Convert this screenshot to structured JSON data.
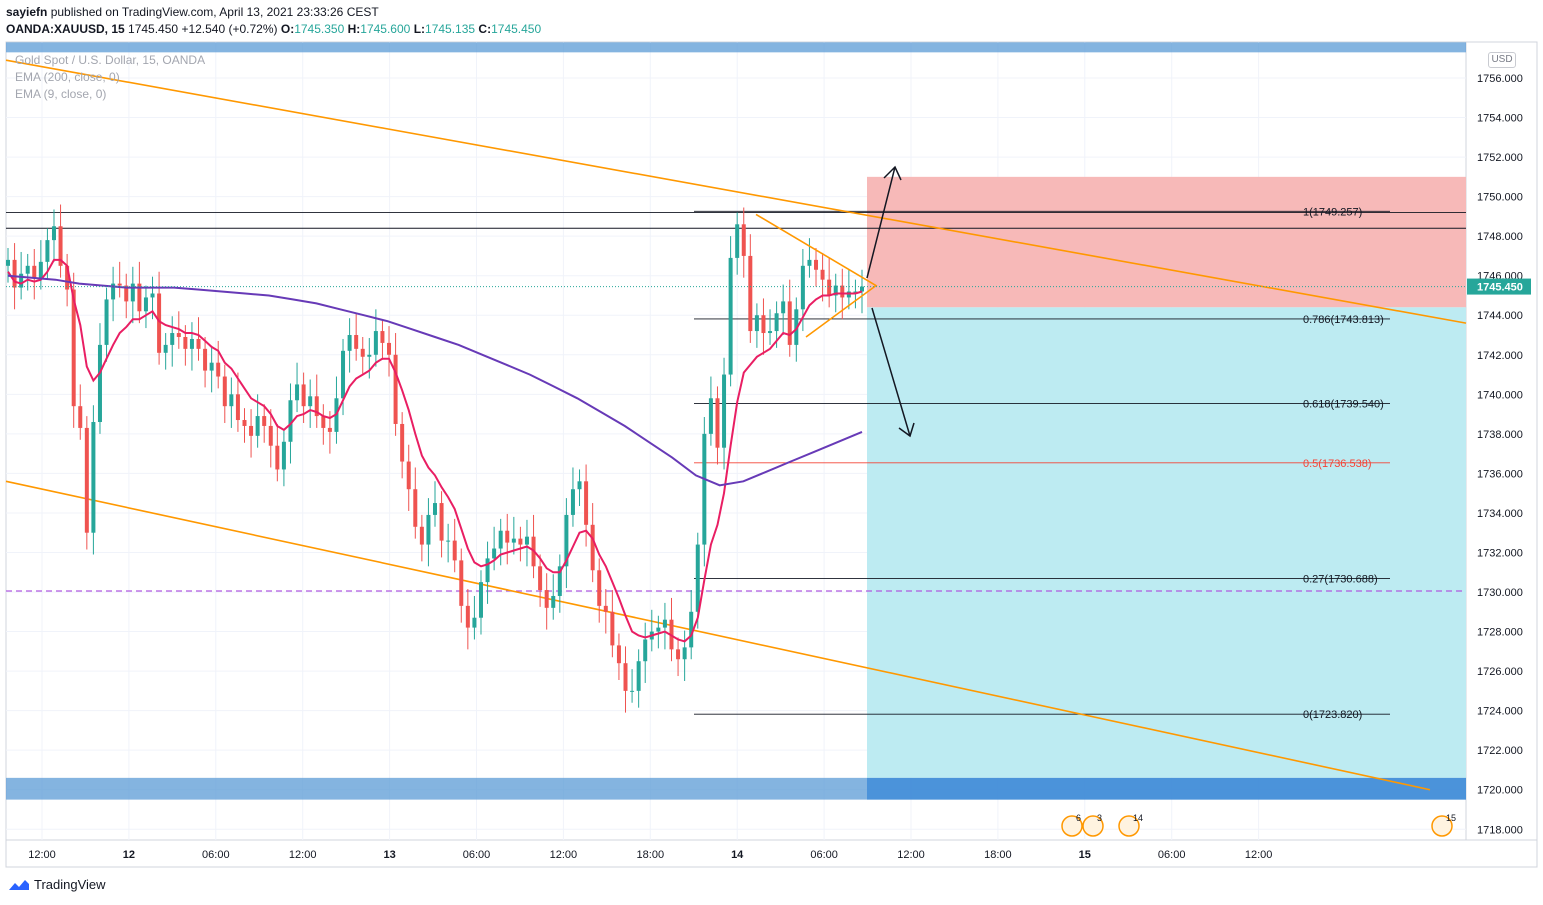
{
  "header": {
    "author": "sayiefn",
    "published_text": "published on TradingView.com, April 13, 2021 23:33:26 CEST",
    "symbol": "OANDA:XAUUSD, 15",
    "last": "1745.450",
    "change": "+12.540 (+0.72%)",
    "open_label": "O:",
    "open": "1745.350",
    "high_label": "H:",
    "high": "1745.600",
    "low_label": "L:",
    "low": "1745.135",
    "close_label": "C:",
    "close": "1745.450"
  },
  "legend": {
    "title": "Gold Spot / U.S. Dollar, 15, OANDA",
    "ema200": "EMA (200, close, 0)",
    "ema9": "EMA (9, close, 0)"
  },
  "currency_label": "USD",
  "footer": {
    "brand": "TradingView"
  },
  "colors": {
    "up": "#26a69a",
    "down": "#ef5350",
    "ema200": "#673ab7",
    "ema9": "#e91e63",
    "trendline": "#ff9800",
    "stop_zone": "#f7b9b8",
    "target_zone": "#bdebf2",
    "band": "#5b9bd5",
    "fib_mid": "#f44336"
  },
  "chart_data": {
    "type": "candlestick",
    "symbol": "XAUUSD",
    "interval": "15",
    "ylim": [
      1717,
      1758
    ],
    "y_ticks": [
      "1756.000",
      "1754.000",
      "1752.000",
      "1750.000",
      "1748.000",
      "1746.000",
      "1744.000",
      "1742.000",
      "1740.000",
      "1738.000",
      "1736.000",
      "1734.000",
      "1732.000",
      "1730.000",
      "1728.000",
      "1726.000",
      "1724.000",
      "1722.000",
      "1720.000",
      "1718.000"
    ],
    "x_ticks": [
      "12:00",
      "12",
      "06:00",
      "12:00",
      "13",
      "06:00",
      "12:00",
      "18:00",
      "14",
      "06:00",
      "12:00",
      "18:00",
      "15",
      "06:00",
      "12:00"
    ],
    "last_price": "1745.450",
    "close": [
      1746.8,
      1745.4,
      1746.1,
      1746.5,
      1745.9,
      1746.7,
      1747.8,
      1748.5,
      1746.5,
      1745.3,
      1739.4,
      1738.3,
      1733.0,
      1738.6,
      1742.5,
      1744.8,
      1745.6,
      1745.5,
      1744.7,
      1745.6,
      1744.2,
      1744.9,
      1745.1,
      1742.1,
      1742.5,
      1743.1,
      1742.9,
      1742.3,
      1742.8,
      1742.3,
      1741.2,
      1741.6,
      1740.9,
      1739.4,
      1740.0,
      1738.7,
      1738.4,
      1737.9,
      1738.9,
      1738.4,
      1737.4,
      1736.2,
      1737.6,
      1739.7,
      1740.5,
      1739.4,
      1739.9,
      1738.9,
      1738.3,
      1738.1,
      1739.8,
      1742.2,
      1743.0,
      1742.3,
      1741.9,
      1742.0,
      1743.2,
      1742.6,
      1742.0,
      1738.5,
      1736.6,
      1735.2,
      1733.3,
      1732.4,
      1733.9,
      1734.5,
      1732.6,
      1732.6,
      1731.6,
      1729.3,
      1728.2,
      1728.7,
      1730.5,
      1731.7,
      1732.2,
      1733.1,
      1732.5,
      1732.7,
      1732.4,
      1732.8,
      1731.3,
      1730.1,
      1729.2,
      1729.8,
      1731.3,
      1733.9,
      1735.2,
      1735.6,
      1733.4,
      1731.1,
      1729.3,
      1729.0,
      1727.3,
      1726.4,
      1725.0,
      1725.0,
      1726.5,
      1727.6,
      1728.0,
      1728.2,
      1728.6,
      1727.1,
      1726.6,
      1727.2,
      1729.0,
      1732.4,
      1738.0,
      1739.8,
      1737.3,
      1741.0,
      1746.9,
      1748.6,
      1747.0,
      1743.2,
      1744.0,
      1743.1,
      1743.2,
      1744.1,
      1744.7,
      1742.5,
      1744.3,
      1746.5,
      1746.8,
      1746.3,
      1745.8,
      1745.0,
      1745.5,
      1744.9,
      1745.2,
      1745.2,
      1745.45
    ],
    "ema200": [
      1746.0,
      1745.9,
      1745.8,
      1745.6,
      1745.5,
      1745.4,
      1745.4,
      1745.4,
      1745.3,
      1745.2,
      1745.1,
      1745.0,
      1744.8,
      1744.6,
      1744.3,
      1744.0,
      1743.7,
      1743.3,
      1742.9,
      1742.5,
      1742.0,
      1741.5,
      1741.0,
      1740.4,
      1739.8,
      1739.1,
      1738.4,
      1737.6,
      1736.8,
      1735.9,
      1735.4,
      1735.6,
      1736.1,
      1736.6,
      1737.1,
      1737.6,
      1738.1
    ],
    "ema9": [
      1746.2,
      1745.7,
      1745.6,
      1745.8,
      1745.7,
      1745.8,
      1746.2,
      1746.8,
      1746.8,
      1746.5,
      1744.8,
      1743.5,
      1741.4,
      1740.7,
      1741.1,
      1741.8,
      1742.5,
      1743.1,
      1743.4,
      1743.8,
      1743.8,
      1744.0,
      1744.2,
      1743.7,
      1743.5,
      1743.4,
      1743.3,
      1743.1,
      1743.1,
      1743.0,
      1742.7,
      1742.4,
      1742.2,
      1741.6,
      1741.3,
      1740.8,
      1740.3,
      1739.8,
      1739.6,
      1739.4,
      1739.0,
      1738.4,
      1738.2,
      1738.5,
      1738.9,
      1739.0,
      1739.2,
      1739.1,
      1738.9,
      1738.8,
      1739.0,
      1739.7,
      1740.4,
      1740.8,
      1741.0,
      1741.2,
      1741.6,
      1741.8,
      1741.8,
      1741.1,
      1740.2,
      1739.2,
      1738.0,
      1736.9,
      1736.3,
      1735.9,
      1735.3,
      1734.8,
      1734.2,
      1733.2,
      1732.2,
      1731.5,
      1731.3,
      1731.4,
      1731.6,
      1731.9,
      1732.0,
      1732.1,
      1732.2,
      1732.3,
      1732.1,
      1731.7,
      1731.2,
      1731.0,
      1731.0,
      1731.6,
      1732.3,
      1733.0,
      1733.1,
      1732.7,
      1731.9,
      1731.3,
      1730.5,
      1729.7,
      1728.8,
      1728.0,
      1727.8,
      1727.7,
      1727.8,
      1727.9,
      1728.0,
      1727.8,
      1727.6,
      1727.5,
      1727.8,
      1728.7,
      1730.6,
      1732.4,
      1733.4,
      1735.0,
      1737.4,
      1739.6,
      1741.1,
      1741.5,
      1741.9,
      1742.1,
      1742.3,
      1742.7,
      1743.1,
      1743.0,
      1743.3,
      1743.9,
      1744.5,
      1744.8,
      1745.0,
      1745.0,
      1745.1,
      1745.1,
      1745.1,
      1745.1,
      1745.2
    ],
    "fibonacci": [
      {
        "level": "1",
        "price": "1749.257",
        "label": "1(1749.257)"
      },
      {
        "level": "0.786",
        "price": "1743.813",
        "label": "0.786(1743.813)"
      },
      {
        "level": "0.618",
        "price": "1739.540",
        "label": "0.618(1739.540)"
      },
      {
        "level": "0.5",
        "price": "1736.538",
        "label": "0.5(1736.538)"
      },
      {
        "level": "0.27",
        "price": "1730.688",
        "label": "0.27(1730.688)"
      },
      {
        "level": "0",
        "price": "1723.820",
        "label": "0(1723.820)"
      }
    ],
    "horizontal_levels": [
      1749.2,
      1748.4,
      1730.05
    ],
    "position_zones": {
      "stop_top": 1751.0,
      "entry": 1744.4,
      "target": 1720.6
    },
    "support_band": [
      1719.5,
      1720.6
    ],
    "resistance_band": [
      1757.0,
      1757.5
    ],
    "events": [
      "6",
      "3",
      "14",
      "15"
    ]
  }
}
